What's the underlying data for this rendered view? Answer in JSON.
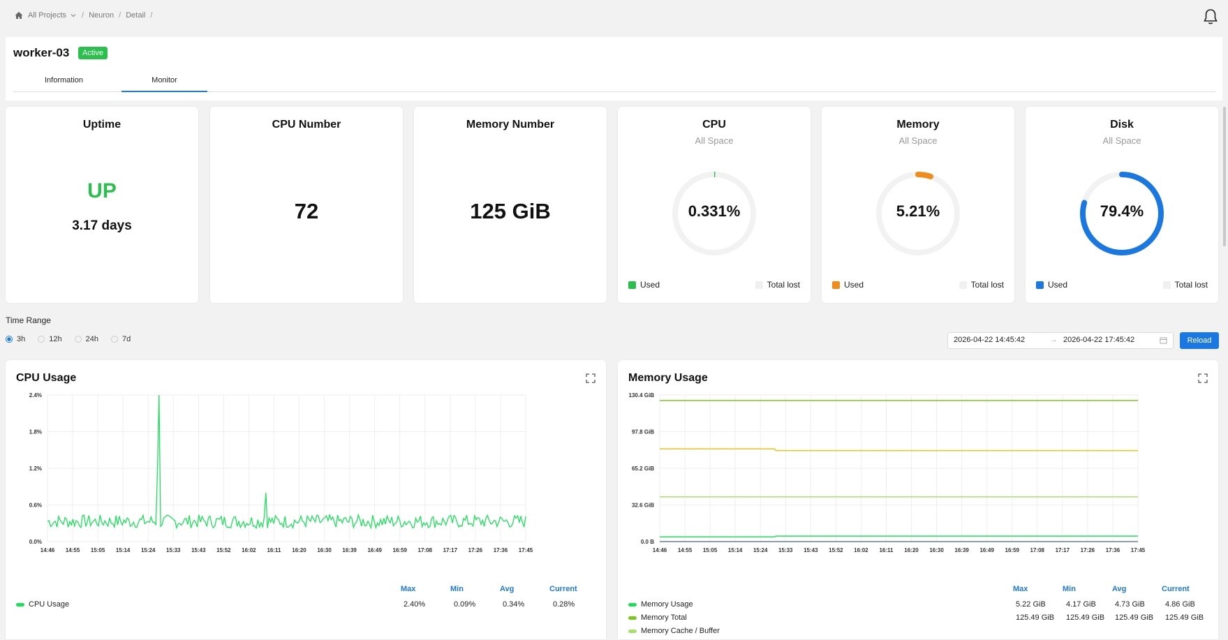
{
  "breadcrumb": {
    "items": [
      "All Projects",
      "Neuron",
      "Detail"
    ]
  },
  "header": {
    "title": "worker-03",
    "status": "Active",
    "tabs": [
      "Information",
      "Monitor"
    ]
  },
  "stats": {
    "uptime": {
      "title": "Uptime",
      "status": "UP",
      "value": "3.17 days"
    },
    "cpu_number": {
      "title": "CPU Number",
      "value": "72"
    },
    "memory_number": {
      "title": "Memory Number",
      "value": "125 GiB"
    }
  },
  "gauges": [
    {
      "title": "CPU",
      "subtitle": "All Space",
      "value": "0.331%",
      "fraction": 0.00331,
      "color": "#2bbf4e",
      "used_label": "Used",
      "total_label": "Total lost"
    },
    {
      "title": "Memory",
      "subtitle": "All Space",
      "value": "5.21%",
      "fraction": 0.0521,
      "color": "#f08c1a",
      "used_label": "Used",
      "total_label": "Total lost"
    },
    {
      "title": "Disk",
      "subtitle": "All Space",
      "value": "79.4%",
      "fraction": 0.794,
      "color": "#1a78e0",
      "used_label": "Used",
      "total_label": "Total lost"
    }
  ],
  "time_range": {
    "label": "Time Range",
    "options": [
      "3h",
      "12h",
      "24h",
      "7d"
    ],
    "selected": "3h",
    "start": "2026-04-22 14:45:42",
    "end": "2026-04-22 17:45:42",
    "reload_label": "Reload"
  },
  "stats_headers": [
    "Max",
    "Min",
    "Avg",
    "Current"
  ],
  "cpu_chart": {
    "title": "CPU Usage",
    "series": [
      {
        "name": "CPU Usage",
        "color": "#1de05a",
        "max": "2.40%",
        "min": "0.09%",
        "avg": "0.34%",
        "current": "0.28%"
      }
    ]
  },
  "memory_chart": {
    "title": "Memory Usage",
    "series": [
      {
        "name": "Memory Usage",
        "color": "#1de05a",
        "max": "5.22 GiB",
        "min": "4.17 GiB",
        "avg": "4.73 GiB",
        "current": "4.86 GiB"
      },
      {
        "name": "Memory Total",
        "color": "#7ac81e",
        "max": "125.49 GiB",
        "min": "125.49 GiB",
        "avg": "125.49 GiB",
        "current": "125.49 GiB"
      },
      {
        "name": "Memory Cache / Buffer",
        "color": "#a6e06a"
      }
    ]
  },
  "chart_data": [
    {
      "type": "line",
      "title": "CPU Usage",
      "x": [
        "14:46",
        "14:55",
        "15:05",
        "15:14",
        "15:24",
        "15:33",
        "15:43",
        "15:52",
        "16:02",
        "16:11",
        "16:20",
        "16:30",
        "16:39",
        "16:49",
        "16:59",
        "17:08",
        "17:17",
        "17:26",
        "17:36",
        "17:45"
      ],
      "y_ticks": [
        "0.0%",
        "0.6%",
        "1.2%",
        "1.8%",
        "2.4%"
      ],
      "ylim": [
        0,
        2.4
      ],
      "series": [
        {
          "name": "CPU Usage",
          "baseline": 0.33,
          "spikes": [
            {
              "x": "15:28",
              "y": 2.4
            },
            {
              "x": "16:08",
              "y": 0.8
            }
          ],
          "max": 2.4,
          "min": 0.09,
          "avg": 0.34,
          "current": 0.28
        }
      ],
      "grid": true
    },
    {
      "type": "line",
      "title": "Memory Usage",
      "x": [
        "14:46",
        "14:55",
        "15:05",
        "15:14",
        "15:24",
        "15:33",
        "15:43",
        "15:52",
        "16:02",
        "16:11",
        "16:20",
        "16:30",
        "16:39",
        "16:49",
        "16:59",
        "17:08",
        "17:17",
        "17:26",
        "17:36",
        "17:45"
      ],
      "y_ticks": [
        "0.0 B",
        "32.6 GiB",
        "65.2 GiB",
        "97.8 GiB",
        "130.4 GiB"
      ],
      "ylim": [
        0,
        130.4
      ],
      "series": [
        {
          "name": "Memory Total",
          "values_gib": [
            125.49,
            125.49
          ],
          "color": "#7ac81e"
        },
        {
          "name": "Memory Cache / Buffer",
          "values_gib": [
            39.8,
            39.8
          ],
          "color": "#a6e06a"
        },
        {
          "name": "Memory Usage",
          "values_gib": [
            4.2,
            4.9
          ],
          "color": "#1de05a"
        },
        {
          "name": "yellow-series",
          "values_gib": [
            82.5,
            81.0
          ],
          "color": "#e8c21a"
        }
      ],
      "grid": true
    }
  ]
}
